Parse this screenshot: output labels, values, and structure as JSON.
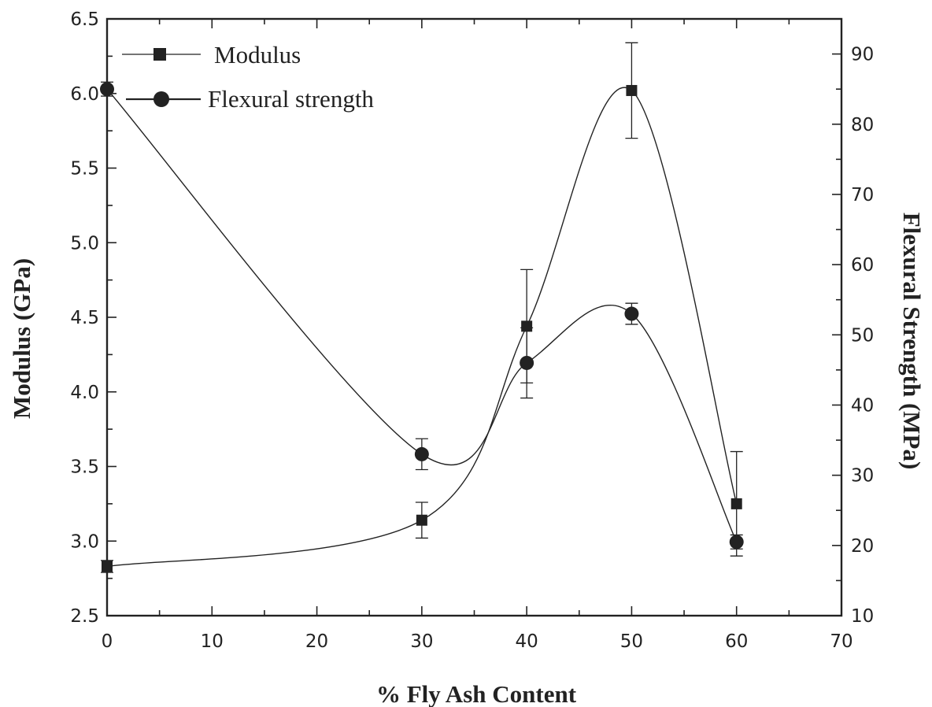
{
  "chart_data": {
    "type": "line",
    "xlabel": "% Fly Ash Content",
    "ylabel_left": "Modulus (GPa)",
    "ylabel_right": "Flexural Strength (MPa)",
    "xlim": [
      0,
      70
    ],
    "ylim_left": [
      2.5,
      6.5
    ],
    "ylim_right": [
      10,
      95
    ],
    "x_ticks": [
      0,
      10,
      20,
      30,
      40,
      50,
      60,
      70
    ],
    "y_left_ticks": [
      2.5,
      3.0,
      3.5,
      4.0,
      4.5,
      5.0,
      5.5,
      6.0,
      6.5
    ],
    "y_left_tick_labels": [
      "2.5",
      "3.0",
      "3.5",
      "4.0",
      "4.5",
      "5.0",
      "5.5",
      "6.0",
      "6.5"
    ],
    "y_right_ticks": [
      10,
      20,
      30,
      40,
      50,
      60,
      70,
      80,
      90
    ],
    "grid": false,
    "legend_position": "top-left",
    "series": [
      {
        "name": "Modulus",
        "axis": "left",
        "marker": "square",
        "x": [
          0,
          30,
          40,
          50,
          60
        ],
        "y": [
          2.83,
          3.14,
          4.44,
          6.02,
          3.25
        ],
        "error": [
          0.04,
          0.12,
          0.38,
          0.32,
          0.35
        ],
        "color": "#222222"
      },
      {
        "name": "Flexural strength",
        "axis": "right",
        "marker": "circle",
        "x": [
          0,
          30,
          40,
          50,
          60
        ],
        "y": [
          85.0,
          33.0,
          46.0,
          53.0,
          20.5
        ],
        "error": [
          1.0,
          2.2,
          5.0,
          1.5,
          1.0
        ],
        "color": "#222222"
      }
    ]
  }
}
